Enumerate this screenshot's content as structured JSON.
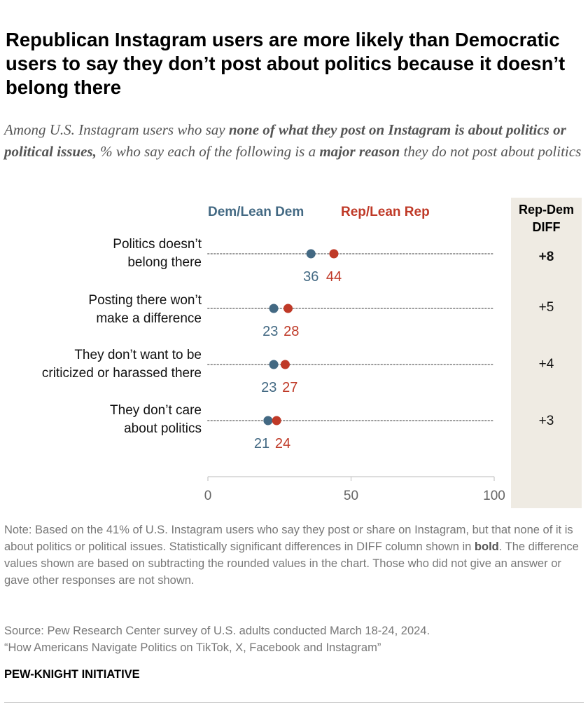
{
  "title": "Republican Instagram users are more likely than Democratic users to say they don’t post about politics because it doesn’t belong there",
  "subtitle": {
    "part1": "Among U.S. Instagram users who say ",
    "bold1": "none of what they post on Instagram is about politics or political issues,",
    "part2": " % who say each of the following is a ",
    "bold2": "major reason",
    "part3": " they do not post about politics"
  },
  "diff_header": {
    "line1": "Rep-Dem",
    "line2": "DIFF"
  },
  "note": {
    "part1": "Note: Based on the 41% of U.S. Instagram users who say they post or share on Instagram, but that none of it is about politics or political issues. Statistically significant differences in DIFF column shown in ",
    "bold": "bold",
    "part2": ". The difference values shown are based on subtracting the rounded values in the chart. Those who did not give an answer or gave other responses are not shown."
  },
  "source_line1": "Source: Pew Research Center survey of U.S. adults conducted March 18-24, 2024.",
  "source_line2": "“How Americans Navigate Politics on TikTok, X, Facebook and Instagram”",
  "brand": "PEW-KNIGHT INITIATIVE",
  "colors": {
    "dem": "#436983",
    "rep": "#bf3927",
    "diff_bg": "#efebe3"
  },
  "chart_data": {
    "type": "scatter",
    "subtype": "dot-plot",
    "xlim": [
      0,
      100
    ],
    "x_ticks": [
      "0",
      "50",
      "100"
    ],
    "series": [
      {
        "name": "Dem/Lean Dem",
        "values": [
          36,
          23,
          23,
          21
        ]
      },
      {
        "name": "Rep/Lean Rep",
        "values": [
          44,
          28,
          27,
          24
        ]
      }
    ],
    "categories": [
      {
        "line1": "Politics doesn’t",
        "line2": "belong there"
      },
      {
        "line1": "Posting there won’t",
        "line2": "make a difference"
      },
      {
        "line1": "They don’t want to be",
        "line2": "criticized or harassed there"
      },
      {
        "line1": "They don’t care",
        "line2": "about politics"
      }
    ],
    "diff": [
      {
        "text": "+8",
        "significant": true
      },
      {
        "text": "+5",
        "significant": false
      },
      {
        "text": "+4",
        "significant": false
      },
      {
        "text": "+3",
        "significant": false
      }
    ]
  }
}
